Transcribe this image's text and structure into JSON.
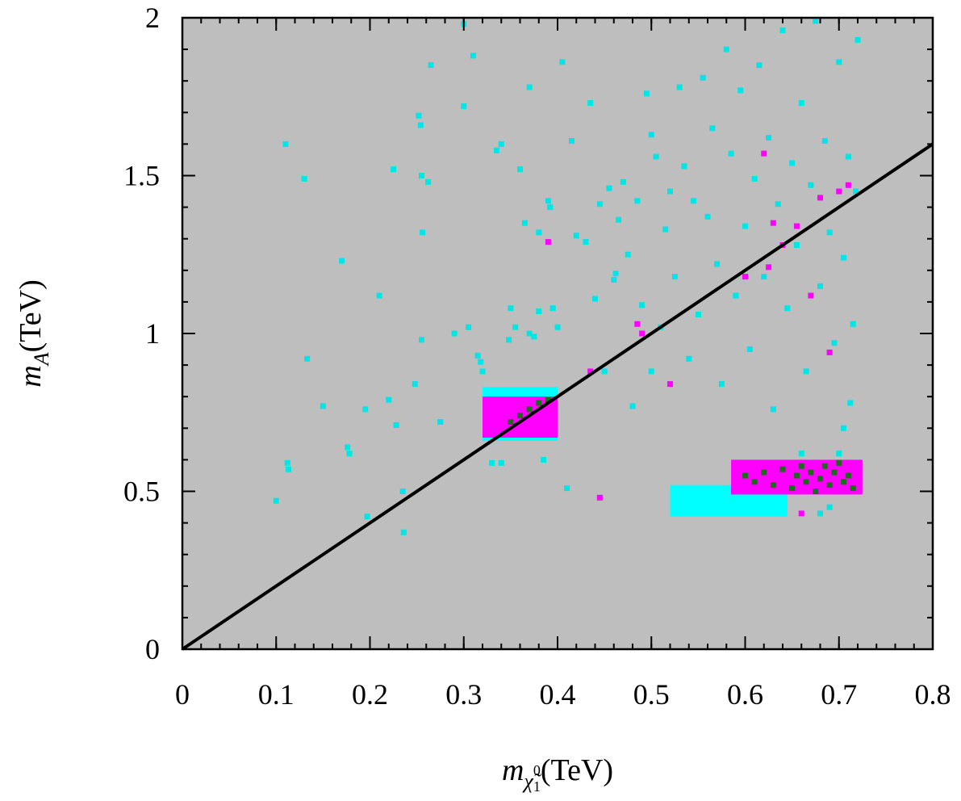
{
  "chart_data": {
    "type": "scatter",
    "title": "",
    "xlabel": {
      "symbol": "m",
      "subscript": "χ̃",
      "sub_sup": "0",
      "sub_sub": "1",
      "unit": "(TeV)"
    },
    "ylabel": {
      "symbol": "m",
      "subscript": "A",
      "unit": "(TeV)"
    },
    "xlim": [
      0,
      0.8
    ],
    "ylim": [
      0,
      2
    ],
    "x_ticks": [
      "0",
      "0.1",
      "0.2",
      "0.3",
      "0.4",
      "0.5",
      "0.6",
      "0.7",
      "0.8"
    ],
    "x_tick_values": [
      0,
      0.1,
      0.2,
      0.3,
      0.4,
      0.5,
      0.6,
      0.7,
      0.8
    ],
    "y_ticks": [
      "0",
      "0.5",
      "1",
      "1.5",
      "2"
    ],
    "y_tick_values": [
      0,
      0.5,
      1,
      1.5,
      2
    ],
    "x_minor_step": 0.02,
    "y_minor_step": 0.1,
    "background_region": {
      "name": "all scanned points",
      "color": "#bebebe",
      "x": [
        0,
        0.8
      ],
      "y": [
        0,
        2
      ]
    },
    "line": {
      "name": "m_A = 2 m_chi",
      "color": "#000000",
      "points": [
        [
          0,
          0
        ],
        [
          0.8,
          1.6
        ]
      ]
    },
    "dense_regions": [
      {
        "name": "cyan-block-left",
        "color": "#00ffff",
        "x": [
          0.32,
          0.4
        ],
        "y": [
          0.66,
          0.83
        ]
      },
      {
        "name": "magenta-block-left",
        "color": "#ff00ff",
        "x": [
          0.32,
          0.4
        ],
        "y": [
          0.67,
          0.8
        ]
      },
      {
        "name": "cyan-block-right",
        "color": "#00ffff",
        "x": [
          0.52,
          0.645
        ],
        "y": [
          0.42,
          0.52
        ]
      },
      {
        "name": "magenta-block-right",
        "color": "#ff00ff",
        "x": [
          0.585,
          0.725
        ],
        "y": [
          0.49,
          0.6
        ]
      }
    ],
    "series": [
      {
        "name": "cyan points",
        "color": "#00e6e6",
        "points": [
          [
            0.1,
            0.47
          ],
          [
            0.11,
            1.6
          ],
          [
            0.112,
            0.59
          ],
          [
            0.113,
            0.57
          ],
          [
            0.13,
            1.49
          ],
          [
            0.133,
            0.92
          ],
          [
            0.15,
            0.77
          ],
          [
            0.17,
            1.23
          ],
          [
            0.176,
            0.64
          ],
          [
            0.178,
            0.62
          ],
          [
            0.195,
            0.76
          ],
          [
            0.197,
            0.42
          ],
          [
            0.21,
            1.12
          ],
          [
            0.22,
            0.79
          ],
          [
            0.225,
            1.52
          ],
          [
            0.228,
            0.71
          ],
          [
            0.235,
            0.5
          ],
          [
            0.236,
            0.37
          ],
          [
            0.248,
            0.84
          ],
          [
            0.252,
            1.69
          ],
          [
            0.254,
            1.66
          ],
          [
            0.255,
            1.5
          ],
          [
            0.256,
            1.32
          ],
          [
            0.262,
            1.48
          ],
          [
            0.265,
            1.85
          ],
          [
            0.255,
            0.98
          ],
          [
            0.275,
            0.72
          ],
          [
            0.29,
            1.0
          ],
          [
            0.3,
            1.72
          ],
          [
            0.305,
            1.02
          ],
          [
            0.3,
            1.98
          ],
          [
            0.31,
            1.88
          ],
          [
            0.315,
            0.93
          ],
          [
            0.318,
            0.91
          ],
          [
            0.32,
            0.88
          ],
          [
            0.33,
            0.59
          ],
          [
            0.335,
            1.58
          ],
          [
            0.34,
            1.6
          ],
          [
            0.34,
            0.59
          ],
          [
            0.348,
            0.98
          ],
          [
            0.35,
            1.08
          ],
          [
            0.355,
            1.02
          ],
          [
            0.36,
            1.52
          ],
          [
            0.365,
            1.35
          ],
          [
            0.37,
            1.78
          ],
          [
            0.37,
            1.0
          ],
          [
            0.375,
            0.99
          ],
          [
            0.38,
            1.07
          ],
          [
            0.38,
            1.32
          ],
          [
            0.385,
            0.6
          ],
          [
            0.39,
            1.42
          ],
          [
            0.392,
            1.4
          ],
          [
            0.395,
            1.08
          ],
          [
            0.4,
            1.02
          ],
          [
            0.405,
            1.86
          ],
          [
            0.41,
            0.51
          ],
          [
            0.415,
            1.61
          ],
          [
            0.42,
            1.31
          ],
          [
            0.43,
            1.29
          ],
          [
            0.435,
            1.73
          ],
          [
            0.44,
            1.11
          ],
          [
            0.445,
            1.41
          ],
          [
            0.45,
            0.88
          ],
          [
            0.455,
            1.46
          ],
          [
            0.46,
            1.17
          ],
          [
            0.462,
            1.19
          ],
          [
            0.465,
            1.36
          ],
          [
            0.47,
            1.48
          ],
          [
            0.475,
            1.25
          ],
          [
            0.48,
            0.77
          ],
          [
            0.485,
            1.42
          ],
          [
            0.49,
            1.09
          ],
          [
            0.495,
            1.76
          ],
          [
            0.5,
            1.63
          ],
          [
            0.5,
            0.88
          ],
          [
            0.505,
            1.56
          ],
          [
            0.51,
            1.02
          ],
          [
            0.515,
            1.33
          ],
          [
            0.52,
            1.45
          ],
          [
            0.525,
            1.18
          ],
          [
            0.53,
            1.78
          ],
          [
            0.535,
            1.53
          ],
          [
            0.54,
            0.92
          ],
          [
            0.545,
            1.42
          ],
          [
            0.55,
            1.06
          ],
          [
            0.555,
            1.81
          ],
          [
            0.56,
            1.37
          ],
          [
            0.565,
            1.65
          ],
          [
            0.57,
            1.22
          ],
          [
            0.575,
            0.84
          ],
          [
            0.58,
            1.9
          ],
          [
            0.585,
            1.57
          ],
          [
            0.59,
            1.12
          ],
          [
            0.595,
            1.77
          ],
          [
            0.6,
            1.34
          ],
          [
            0.605,
            0.95
          ],
          [
            0.61,
            1.49
          ],
          [
            0.615,
            1.85
          ],
          [
            0.62,
            1.18
          ],
          [
            0.625,
            1.62
          ],
          [
            0.63,
            0.76
          ],
          [
            0.635,
            1.41
          ],
          [
            0.64,
            1.96
          ],
          [
            0.645,
            1.08
          ],
          [
            0.65,
            1.54
          ],
          [
            0.655,
            1.28
          ],
          [
            0.66,
            1.73
          ],
          [
            0.665,
            0.88
          ],
          [
            0.67,
            1.47
          ],
          [
            0.675,
            1.99
          ],
          [
            0.68,
            1.15
          ],
          [
            0.685,
            1.61
          ],
          [
            0.69,
            1.32
          ],
          [
            0.695,
            0.97
          ],
          [
            0.7,
            1.86
          ],
          [
            0.705,
            1.24
          ],
          [
            0.71,
            1.56
          ],
          [
            0.715,
            1.03
          ],
          [
            0.72,
            1.93
          ],
          [
            0.718,
            1.45
          ],
          [
            0.705,
            0.7
          ],
          [
            0.712,
            0.78
          ],
          [
            0.69,
            0.45
          ],
          [
            0.68,
            0.43
          ],
          [
            0.7,
            0.62
          ],
          [
            0.66,
            0.62
          ]
        ]
      },
      {
        "name": "magenta points",
        "color": "#ff00ff",
        "points": [
          [
            0.39,
            1.29
          ],
          [
            0.435,
            0.88
          ],
          [
            0.445,
            0.48
          ],
          [
            0.485,
            1.03
          ],
          [
            0.49,
            1.0
          ],
          [
            0.52,
            0.84
          ],
          [
            0.6,
            1.18
          ],
          [
            0.62,
            1.57
          ],
          [
            0.625,
            1.21
          ],
          [
            0.63,
            1.35
          ],
          [
            0.64,
            1.28
          ],
          [
            0.655,
            1.34
          ],
          [
            0.66,
            0.43
          ],
          [
            0.67,
            1.12
          ],
          [
            0.68,
            1.43
          ],
          [
            0.69,
            0.94
          ],
          [
            0.7,
            1.45
          ],
          [
            0.71,
            1.47
          ]
        ]
      },
      {
        "name": "dark green points",
        "color": "#1e6b1e",
        "points": [
          [
            0.35,
            0.72
          ],
          [
            0.36,
            0.74
          ],
          [
            0.37,
            0.76
          ],
          [
            0.38,
            0.78
          ],
          [
            0.39,
            0.79
          ],
          [
            0.6,
            0.55
          ],
          [
            0.61,
            0.53
          ],
          [
            0.62,
            0.56
          ],
          [
            0.63,
            0.52
          ],
          [
            0.64,
            0.57
          ],
          [
            0.65,
            0.51
          ],
          [
            0.655,
            0.55
          ],
          [
            0.66,
            0.58
          ],
          [
            0.665,
            0.53
          ],
          [
            0.67,
            0.56
          ],
          [
            0.675,
            0.5
          ],
          [
            0.68,
            0.54
          ],
          [
            0.685,
            0.58
          ],
          [
            0.69,
            0.52
          ],
          [
            0.695,
            0.56
          ],
          [
            0.7,
            0.59
          ],
          [
            0.705,
            0.53
          ],
          [
            0.71,
            0.55
          ],
          [
            0.715,
            0.51
          ]
        ]
      }
    ]
  }
}
